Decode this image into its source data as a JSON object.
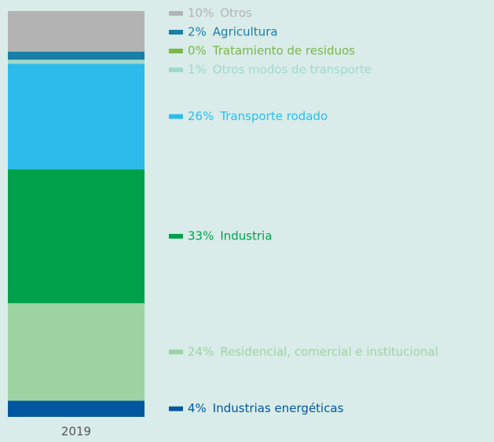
{
  "chart_data": {
    "type": "stacked-bar",
    "categories": [
      "2019"
    ],
    "ylim": [
      0,
      100
    ],
    "series": [
      {
        "name": "Industrias energéticas",
        "color": "#0057a0",
        "values": [
          4
        ],
        "value_labels": [
          "4%"
        ]
      },
      {
        "name": "Residencial, comercial e institucional",
        "color": "#9dd3a2",
        "values": [
          24
        ],
        "value_labels": [
          "24%"
        ]
      },
      {
        "name": "Industria",
        "color": "#00a14b",
        "values": [
          33
        ],
        "value_labels": [
          "33%"
        ]
      },
      {
        "name": "Transporte rodado",
        "color": "#2dbbeb",
        "values": [
          26
        ],
        "value_labels": [
          "26%"
        ]
      },
      {
        "name": "Otros modos de transporte",
        "color": "#9fd8cc",
        "values": [
          1
        ],
        "value_labels": [
          "1%"
        ]
      },
      {
        "name": "Tratamiento de residuos",
        "color": "#7ab648",
        "values": [
          0
        ],
        "value_labels": [
          "0%"
        ]
      },
      {
        "name": "Agricultura",
        "color": "#1a7fa8",
        "values": [
          2
        ],
        "value_labels": [
          "2%"
        ]
      },
      {
        "name": "Otros",
        "color": "#b3b3b3",
        "values": [
          10
        ],
        "value_labels": [
          "10%"
        ]
      }
    ]
  }
}
